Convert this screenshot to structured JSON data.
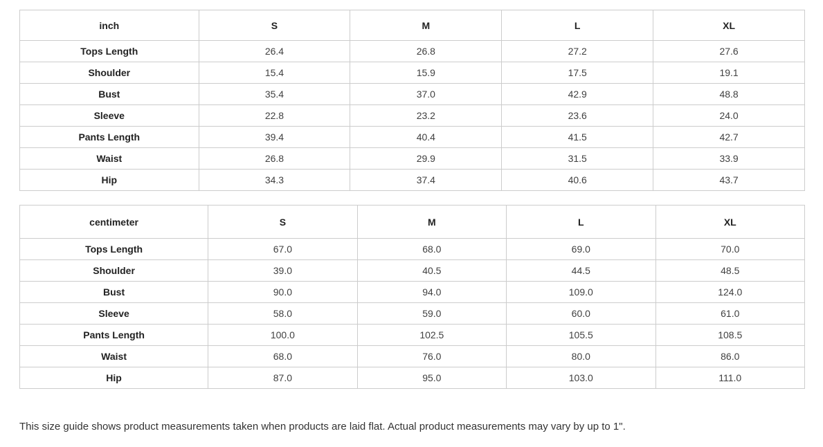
{
  "tables": [
    {
      "unit": "inch",
      "sizes": [
        "S",
        "M",
        "L",
        "XL"
      ],
      "rows": [
        {
          "label": "Tops Length",
          "values": [
            "26.4",
            "26.8",
            "27.2",
            "27.6"
          ]
        },
        {
          "label": "Shoulder",
          "values": [
            "15.4",
            "15.9",
            "17.5",
            "19.1"
          ]
        },
        {
          "label": "Bust",
          "values": [
            "35.4",
            "37.0",
            "42.9",
            "48.8"
          ]
        },
        {
          "label": "Sleeve",
          "values": [
            "22.8",
            "23.2",
            "23.6",
            "24.0"
          ]
        },
        {
          "label": "Pants Length",
          "values": [
            "39.4",
            "40.4",
            "41.5",
            "42.7"
          ]
        },
        {
          "label": "Waist",
          "values": [
            "26.8",
            "29.9",
            "31.5",
            "33.9"
          ]
        },
        {
          "label": "Hip",
          "values": [
            "34.3",
            "37.4",
            "40.6",
            "43.7"
          ]
        }
      ]
    },
    {
      "unit": "centimeter",
      "sizes": [
        "S",
        "M",
        "L",
        "XL"
      ],
      "rows": [
        {
          "label": "Tops Length",
          "values": [
            "67.0",
            "68.0",
            "69.0",
            "70.0"
          ]
        },
        {
          "label": "Shoulder",
          "values": [
            "39.0",
            "40.5",
            "44.5",
            "48.5"
          ]
        },
        {
          "label": "Bust",
          "values": [
            "90.0",
            "94.0",
            "109.0",
            "124.0"
          ]
        },
        {
          "label": "Sleeve",
          "values": [
            "58.0",
            "59.0",
            "60.0",
            "61.0"
          ]
        },
        {
          "label": "Pants Length",
          "values": [
            "100.0",
            "102.5",
            "105.5",
            "108.5"
          ]
        },
        {
          "label": "Waist",
          "values": [
            "68.0",
            "76.0",
            "80.0",
            "86.0"
          ]
        },
        {
          "label": "Hip",
          "values": [
            "87.0",
            "95.0",
            "103.0",
            "111.0"
          ]
        }
      ]
    }
  ],
  "footer": {
    "note": "This size guide shows product measurements taken when products are laid flat. Actual product measurements may vary by up to 1\"."
  },
  "colors": {
    "table_border": "#cccccc",
    "header_text": "#222222",
    "value_text": "#404040",
    "note_text": "#333333",
    "background": "#ffffff"
  }
}
